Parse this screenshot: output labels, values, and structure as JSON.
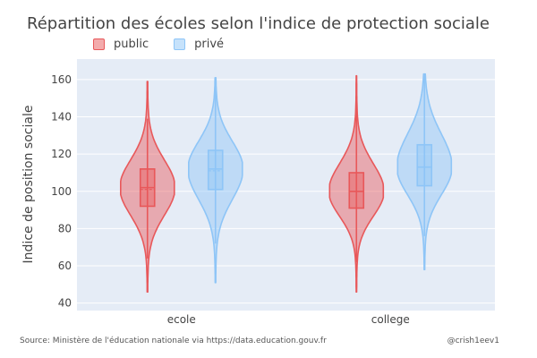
{
  "header": {
    "title": "Répartition des écoles selon l'indice de protection sociale"
  },
  "footer": {
    "source": "Source: Ministère de l'éducation nationale via https://data.education.gouv.fr",
    "credit": "@crish1eev1"
  },
  "colors": {
    "public": "#e8585a",
    "prive": "#8ec5f7",
    "plot_bg": "#e5ecf6",
    "grid": "#ffffff"
  },
  "chart_data": {
    "type": "violin",
    "title": "Répartition des écoles selon l'indice de protection sociale",
    "xlabel": "",
    "ylabel": "Indice de position sociale",
    "ylim": [
      36,
      171
    ],
    "yticks": [
      40,
      60,
      80,
      100,
      120,
      140,
      160
    ],
    "categories": [
      "ecole",
      "college"
    ],
    "legend": "top-left",
    "grid": true,
    "series": [
      {
        "name": "public",
        "color": "#e8585a",
        "stats": [
          {
            "category": "ecole",
            "min": 46,
            "q1": 92,
            "median": 102,
            "mean": 101,
            "q3": 112,
            "max": 159,
            "upper_fence": 139,
            "lower_fence": 64
          },
          {
            "category": "college",
            "min": 46,
            "q1": 91,
            "median": 100,
            "mean": 100,
            "q3": 110,
            "max": 162,
            "upper_fence": 151,
            "lower_fence": 62
          }
        ]
      },
      {
        "name": "privé",
        "color": "#8ec5f7",
        "stats": [
          {
            "category": "ecole",
            "min": 51,
            "q1": 101,
            "median": 112,
            "mean": 111,
            "q3": 122,
            "max": 161,
            "upper_fence": 161,
            "lower_fence": 72
          },
          {
            "category": "college",
            "min": 58,
            "q1": 103,
            "median": 113,
            "mean": 113,
            "q3": 125,
            "max": 163,
            "upper_fence": 163,
            "lower_fence": 76
          }
        ]
      }
    ]
  }
}
